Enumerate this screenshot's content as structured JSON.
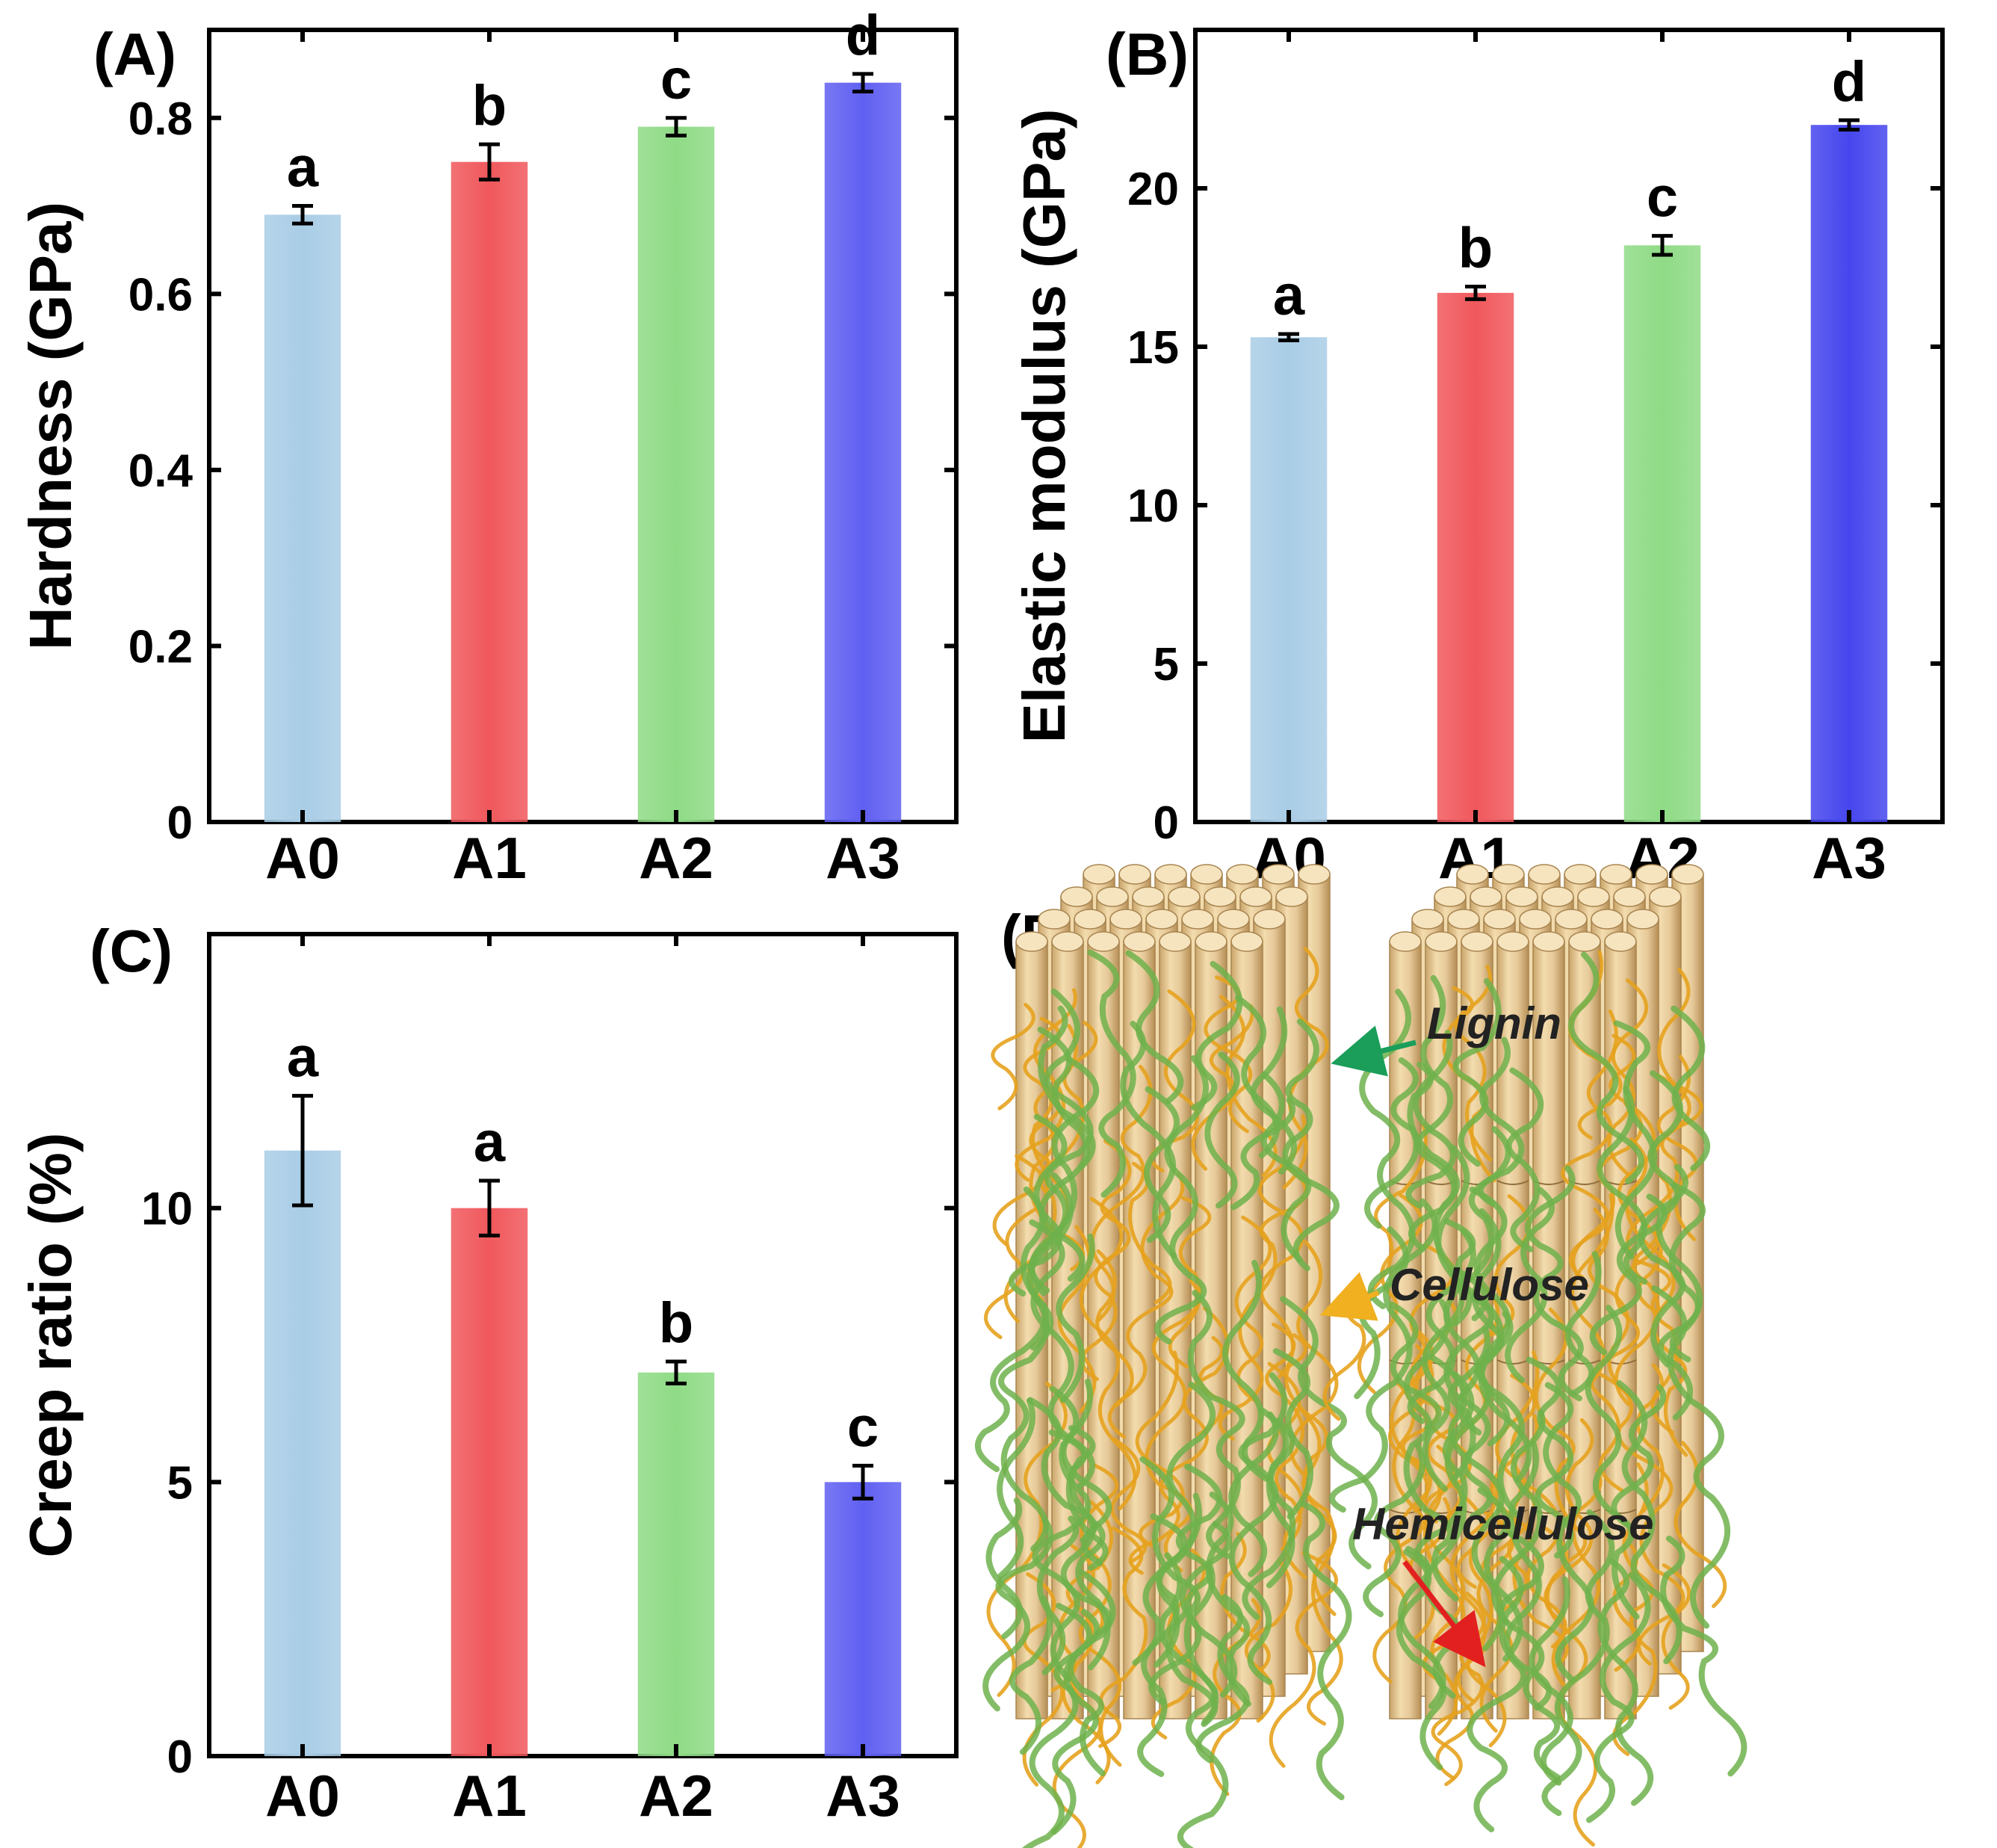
{
  "chart_data": [
    {
      "type": "bar",
      "panel": "(A)",
      "title": "",
      "xlabel": "",
      "ylabel": "Hardness (GPa)",
      "categories": [
        "A0",
        "A1",
        "A2",
        "A3"
      ],
      "values": [
        0.69,
        0.75,
        0.79,
        0.84
      ],
      "errors": [
        0.01,
        0.02,
        0.01,
        0.01
      ],
      "significance": [
        "a",
        "b",
        "c",
        "d"
      ],
      "colors": [
        "#a9cde6",
        "#f0585c",
        "#8fdb86",
        "#6060f2"
      ],
      "ylim": [
        0,
        0.9
      ],
      "yticks": [
        0,
        0.2,
        0.4,
        0.6,
        0.8
      ],
      "ytick_labels": [
        "0",
        "0.2",
        "0.4",
        "0.6",
        "0.8"
      ],
      "grid": false
    },
    {
      "type": "bar",
      "panel": "(B)",
      "title": "",
      "xlabel": "",
      "ylabel": "Elastic modulus (GPa)",
      "categories": [
        "A0",
        "A1",
        "A2",
        "A3"
      ],
      "values": [
        15.3,
        16.7,
        18.2,
        22.0
      ],
      "errors": [
        0.1,
        0.2,
        0.3,
        0.15
      ],
      "significance": [
        "a",
        "b",
        "c",
        "d"
      ],
      "colors": [
        "#a9cde6",
        "#f0585c",
        "#8fdb86",
        "#4646ee"
      ],
      "ylim": [
        0,
        25
      ],
      "yticks": [
        0,
        5,
        10,
        15,
        20
      ],
      "ytick_labels": [
        "0",
        "5",
        "10",
        "15",
        "20"
      ],
      "grid": false
    },
    {
      "type": "bar",
      "panel": "(C)",
      "title": "",
      "xlabel": "",
      "ylabel": "Creep ratio (%)",
      "categories": [
        "A0",
        "A1",
        "A2",
        "A3"
      ],
      "values": [
        11.05,
        10.0,
        7.0,
        5.0
      ],
      "errors": [
        1.0,
        0.5,
        0.2,
        0.3
      ],
      "significance": [
        "a",
        "a",
        "b",
        "c"
      ],
      "colors": [
        "#a9cde6",
        "#f0585c",
        "#8fdb86",
        "#6060f2"
      ],
      "ylim": [
        0,
        15
      ],
      "yticks": [
        0,
        5,
        10
      ],
      "ytick_labels": [
        "0",
        "5",
        "10"
      ],
      "grid": false
    }
  ],
  "diagram": {
    "panel": "(D)",
    "labels": {
      "lignin": "Lignin",
      "cellulose": "Cellulose",
      "hemicellulose": "Hemicellulose"
    },
    "colors": {
      "cellulose_rod": "#e6c999",
      "lignin_strand": "#6fb24c",
      "hemicellulose_strand": "#e6a21e",
      "lignin_arrow": "#1a9e5a",
      "cellulose_arrow": "#f0b020",
      "hemicellulose_arrow": "#e32020"
    }
  }
}
